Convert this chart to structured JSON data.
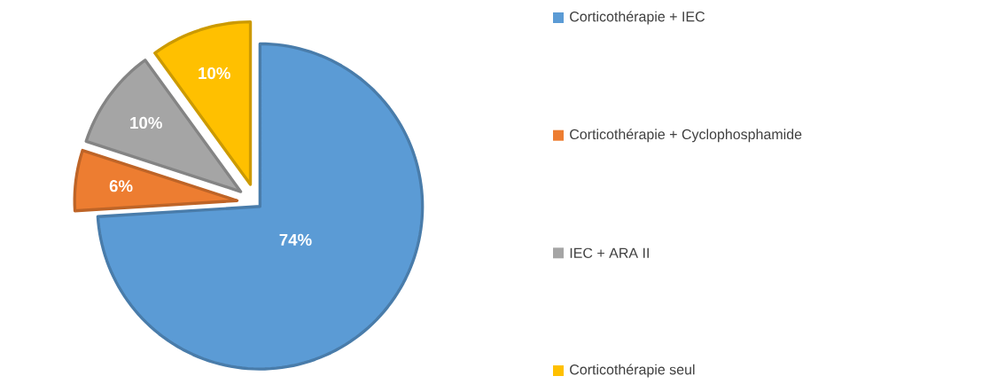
{
  "chart_data": {
    "type": "pie",
    "categories": [
      "Corticothérapie + IEC",
      "Corticothérapie + Cyclophosphamide",
      "IEC + ARA II",
      "Corticothérapie seul"
    ],
    "values": [
      74,
      6,
      10,
      10
    ],
    "colors": [
      "#5b9bd5",
      "#ed7d31",
      "#a5a5a5",
      "#ffc000"
    ],
    "value_labels": [
      "74%",
      "6%",
      "10%",
      "10%"
    ],
    "legend": "right"
  }
}
